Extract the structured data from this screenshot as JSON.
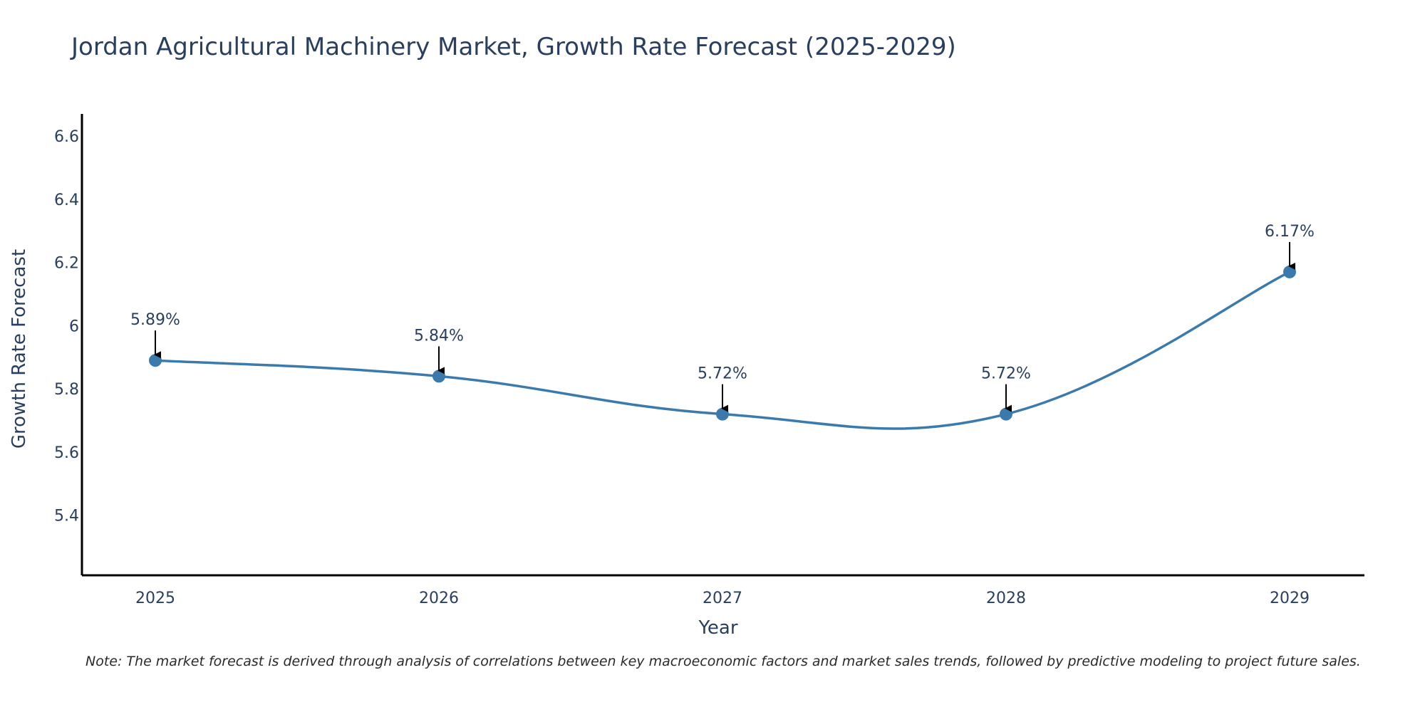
{
  "chart_data": {
    "type": "line",
    "title": "Jordan Agricultural Machinery Market, Growth Rate Forecast (2025-2029)",
    "xlabel": "Year",
    "ylabel": "Growth Rate Forecast",
    "x": [
      "2025",
      "2026",
      "2027",
      "2028",
      "2029"
    ],
    "series": [
      {
        "name": "Growth Rate Forecast",
        "values": [
          5.89,
          5.84,
          5.72,
          5.72,
          6.17
        ],
        "labels": [
          "5.89%",
          "5.84%",
          "5.72%",
          "5.72%",
          "6.17%"
        ]
      }
    ],
    "ylim": [
      5.21,
      6.67
    ],
    "yticks": [
      5.4,
      5.6,
      5.8,
      6.0,
      6.2,
      6.4,
      6.6
    ],
    "ytick_labels": [
      "5.4",
      "5.6",
      "5.8",
      "6",
      "6.2",
      "6.4",
      "6.6"
    ],
    "grid": false,
    "line_color": "#3a7aad",
    "marker_color": "#3a7aad"
  },
  "note": "Note: The market forecast is derived through analysis of correlations between key macroeconomic factors and market sales trends, followed by predictive modeling to project future sales."
}
